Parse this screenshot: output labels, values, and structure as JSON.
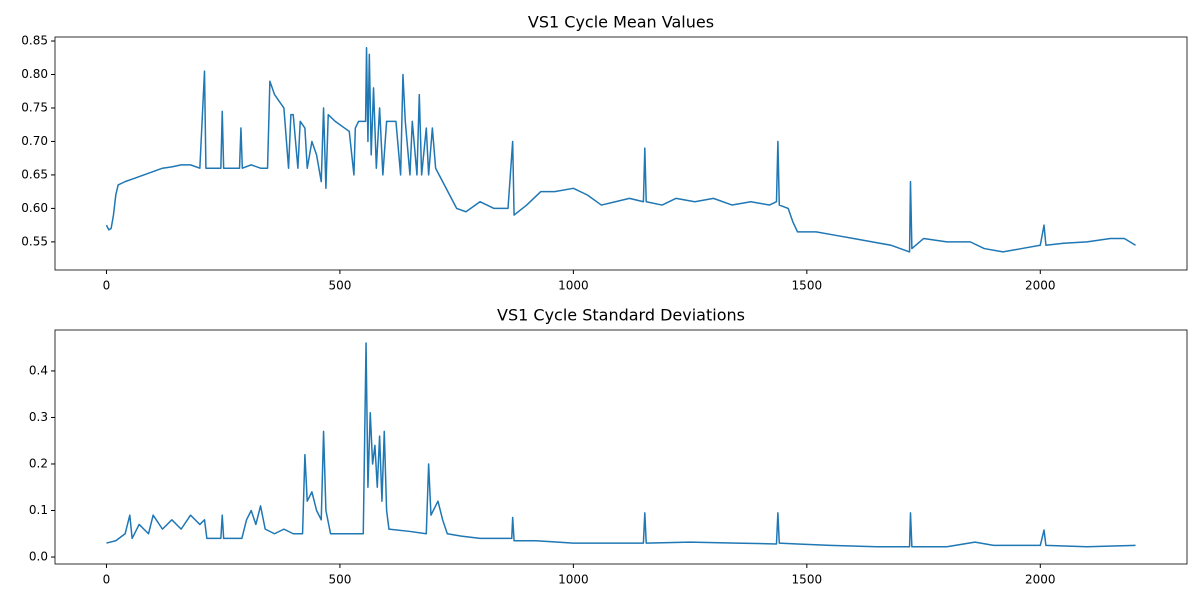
{
  "chart_data": [
    {
      "type": "line",
      "title": "VS1 Cycle Mean Values",
      "color": "#1f77b4",
      "x": [
        0,
        5,
        10,
        15,
        20,
        25,
        40,
        60,
        80,
        100,
        120,
        140,
        160,
        180,
        200,
        210,
        213,
        230,
        245,
        248,
        251,
        270,
        285,
        288,
        291,
        310,
        330,
        345,
        350,
        360,
        370,
        380,
        390,
        395,
        400,
        410,
        415,
        425,
        430,
        440,
        450,
        460,
        465,
        470,
        475,
        490,
        510,
        520,
        530,
        533,
        540,
        555,
        557,
        560,
        563,
        567,
        572,
        578,
        585,
        592,
        600,
        620,
        630,
        635,
        640,
        650,
        655,
        665,
        670,
        675,
        685,
        690,
        698,
        705,
        720,
        735,
        750,
        770,
        800,
        830,
        860,
        870,
        873,
        900,
        930,
        960,
        1000,
        1030,
        1060,
        1090,
        1120,
        1150,
        1153,
        1156,
        1190,
        1220,
        1260,
        1300,
        1340,
        1380,
        1420,
        1435,
        1438,
        1441,
        1460,
        1470,
        1480,
        1520,
        1560,
        1600,
        1640,
        1680,
        1700,
        1720,
        1722,
        1725,
        1750,
        1800,
        1850,
        1880,
        1920,
        1960,
        2000,
        2008,
        2012,
        2050,
        2100,
        2150,
        2180,
        2204
      ],
      "values": [
        0.575,
        0.568,
        0.57,
        0.59,
        0.62,
        0.635,
        0.64,
        0.645,
        0.65,
        0.655,
        0.66,
        0.662,
        0.665,
        0.665,
        0.66,
        0.805,
        0.66,
        0.66,
        0.66,
        0.745,
        0.66,
        0.66,
        0.66,
        0.72,
        0.66,
        0.665,
        0.66,
        0.66,
        0.79,
        0.77,
        0.76,
        0.75,
        0.66,
        0.74,
        0.74,
        0.66,
        0.73,
        0.72,
        0.66,
        0.7,
        0.68,
        0.64,
        0.75,
        0.63,
        0.74,
        0.73,
        0.72,
        0.715,
        0.65,
        0.72,
        0.73,
        0.73,
        0.84,
        0.7,
        0.83,
        0.68,
        0.78,
        0.66,
        0.75,
        0.65,
        0.73,
        0.73,
        0.65,
        0.8,
        0.73,
        0.65,
        0.73,
        0.65,
        0.77,
        0.65,
        0.72,
        0.65,
        0.72,
        0.66,
        0.64,
        0.62,
        0.6,
        0.595,
        0.61,
        0.6,
        0.6,
        0.7,
        0.59,
        0.605,
        0.625,
        0.625,
        0.63,
        0.62,
        0.605,
        0.61,
        0.615,
        0.61,
        0.69,
        0.61,
        0.605,
        0.615,
        0.61,
        0.615,
        0.605,
        0.61,
        0.605,
        0.61,
        0.7,
        0.605,
        0.6,
        0.58,
        0.565,
        0.565,
        0.56,
        0.555,
        0.55,
        0.545,
        0.54,
        0.535,
        0.64,
        0.54,
        0.555,
        0.55,
        0.55,
        0.54,
        0.535,
        0.54,
        0.545,
        0.575,
        0.545,
        0.548,
        0.55,
        0.555,
        0.555,
        0.545
      ],
      "xlim": [
        -110.2,
        2314.2
      ],
      "xticks": [
        0,
        500,
        1000,
        1500,
        2000
      ],
      "ylim": [
        0.508,
        0.856
      ],
      "yticks": [
        0.55,
        {
          "value": 0.6,
          "label": "0.60"
        },
        0.65,
        {
          "value": 0.7,
          "label": "0.70"
        },
        0.75,
        {
          "value": 0.8,
          "label": "0.80"
        },
        0.85
      ]
    },
    {
      "type": "line",
      "title": "VS1 Cycle Standard Deviations",
      "color": "#1f77b4",
      "x": [
        0,
        20,
        40,
        50,
        55,
        70,
        90,
        100,
        120,
        140,
        160,
        180,
        200,
        210,
        215,
        245,
        248,
        251,
        290,
        300,
        310,
        320,
        330,
        340,
        360,
        380,
        400,
        420,
        425,
        430,
        440,
        450,
        460,
        465,
        470,
        480,
        500,
        530,
        550,
        556,
        560,
        565,
        570,
        575,
        580,
        585,
        590,
        595,
        600,
        605,
        650,
        685,
        690,
        695,
        710,
        720,
        730,
        760,
        800,
        840,
        868,
        870,
        873,
        920,
        1000,
        1100,
        1150,
        1153,
        1156,
        1250,
        1350,
        1435,
        1438,
        1441,
        1480,
        1550,
        1650,
        1720,
        1722,
        1725,
        1800,
        1860,
        1900,
        2000,
        2008,
        2012,
        2100,
        2204
      ],
      "values": [
        0.03,
        0.035,
        0.05,
        0.09,
        0.04,
        0.07,
        0.05,
        0.09,
        0.06,
        0.08,
        0.06,
        0.09,
        0.07,
        0.08,
        0.04,
        0.04,
        0.09,
        0.04,
        0.04,
        0.08,
        0.1,
        0.07,
        0.11,
        0.06,
        0.05,
        0.06,
        0.05,
        0.05,
        0.22,
        0.12,
        0.14,
        0.1,
        0.08,
        0.27,
        0.1,
        0.05,
        0.05,
        0.05,
        0.05,
        0.46,
        0.15,
        0.31,
        0.2,
        0.24,
        0.15,
        0.26,
        0.12,
        0.27,
        0.1,
        0.06,
        0.055,
        0.05,
        0.2,
        0.09,
        0.12,
        0.08,
        0.05,
        0.045,
        0.04,
        0.04,
        0.04,
        0.085,
        0.035,
        0.035,
        0.03,
        0.03,
        0.03,
        0.095,
        0.03,
        0.032,
        0.03,
        0.028,
        0.095,
        0.03,
        0.028,
        0.025,
        0.022,
        0.022,
        0.095,
        0.022,
        0.022,
        0.032,
        0.025,
        0.025,
        0.058,
        0.025,
        0.022,
        0.025
      ],
      "xlim": [
        -110.2,
        2314.2
      ],
      "xticks": [
        0,
        500,
        1000,
        1500,
        2000
      ],
      "ylim": [
        -0.015,
        0.488
      ],
      "yticks": [
        {
          "value": 0,
          "label": "0.0"
        },
        0.1,
        0.2,
        0.3,
        0.4
      ]
    }
  ]
}
